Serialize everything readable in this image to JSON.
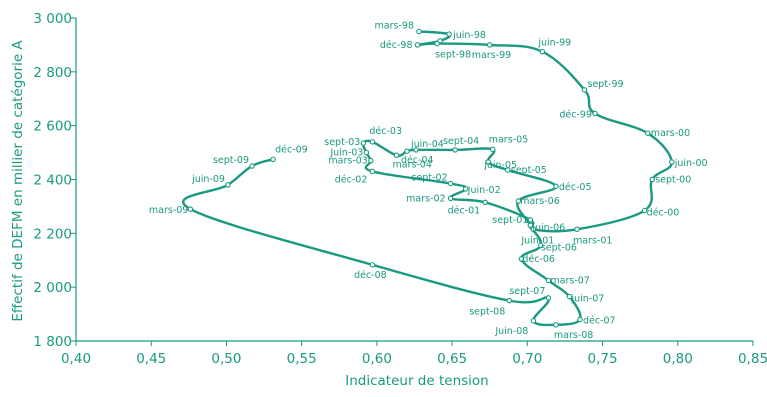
{
  "chart_data": {
    "type": "line",
    "title": "",
    "xlabel": "Indicateur de tension",
    "ylabel": "Effectif de DEFM en millier de catégorie A",
    "xlim": [
      0.4,
      0.85
    ],
    "ylim": [
      1800,
      3000
    ],
    "x_ticks": [
      0.4,
      0.45,
      0.5,
      0.55,
      0.6,
      0.65,
      0.7,
      0.75,
      0.8,
      0.85
    ],
    "x_tick_labels": [
      "0,40",
      "0,45",
      "0,50",
      "0,55",
      "0,60",
      "0,65",
      "0,70",
      "0,75",
      "0,80",
      "0,85"
    ],
    "y_ticks": [
      1800,
      2000,
      2200,
      2400,
      2600,
      2800,
      3000
    ],
    "y_tick_labels": [
      "1 800",
      "2 000",
      "2 200",
      "2 400",
      "2 600",
      "2 800",
      "3 000"
    ],
    "color": "#1a9a80",
    "grid": false,
    "legend": "none",
    "series": [
      {
        "points": [
          {
            "label": "mars-98",
            "x": 0.628,
            "y": 2950
          },
          {
            "label": "juin-98",
            "x": 0.648,
            "y": 2940
          },
          {
            "label": "",
            "x": 0.642,
            "y": 2915
          },
          {
            "label": "déc-98",
            "x": 0.627,
            "y": 2900
          },
          {
            "label": "sept-98",
            "x": 0.64,
            "y": 2905
          },
          {
            "label": "mars-99",
            "x": 0.675,
            "y": 2900
          },
          {
            "label": "juin-99",
            "x": 0.71,
            "y": 2875
          },
          {
            "label": "sept-99",
            "x": 0.738,
            "y": 2733
          },
          {
            "label": "déc-99",
            "x": 0.745,
            "y": 2645
          },
          {
            "label": "mars-00",
            "x": 0.78,
            "y": 2572
          },
          {
            "label": "juin-00",
            "x": 0.796,
            "y": 2465
          },
          {
            "label": "sept-00",
            "x": 0.783,
            "y": 2400
          },
          {
            "label": "déc-00",
            "x": 0.778,
            "y": 2285
          },
          {
            "label": "mars-01",
            "x": 0.733,
            "y": 2215
          },
          {
            "label": "Juin-01",
            "x": 0.704,
            "y": 2215
          },
          {
            "label": "sept-01",
            "x": 0.702,
            "y": 2250
          },
          {
            "label": "déc-01",
            "x": 0.672,
            "y": 2315
          },
          {
            "label": "mars-02",
            "x": 0.649,
            "y": 2330
          },
          {
            "label": "Juin-02",
            "x": 0.659,
            "y": 2365
          },
          {
            "label": "sept-02",
            "x": 0.649,
            "y": 2385
          },
          {
            "label": "déc-02",
            "x": 0.597,
            "y": 2430
          },
          {
            "label": "mars-03",
            "x": 0.596,
            "y": 2470
          },
          {
            "label": "Juin-03",
            "x": 0.593,
            "y": 2500
          },
          {
            "label": "sept-03",
            "x": 0.591,
            "y": 2535
          },
          {
            "label": "déc-03",
            "x": 0.597,
            "y": 2540
          },
          {
            "label": "mars-04",
            "x": 0.613,
            "y": 2490
          },
          {
            "label": "déc-04",
            "x": 0.62,
            "y": 2505
          },
          {
            "label": "juin-04",
            "x": 0.626,
            "y": 2510
          },
          {
            "label": "sept-04",
            "x": 0.652,
            "y": 2510
          },
          {
            "label": "mars-05",
            "x": 0.677,
            "y": 2512
          },
          {
            "label": "juin-05",
            "x": 0.674,
            "y": 2465
          },
          {
            "label": "sept-05",
            "x": 0.687,
            "y": 2435
          },
          {
            "label": "déc-05",
            "x": 0.719,
            "y": 2375
          },
          {
            "label": "mars-06",
            "x": 0.694,
            "y": 2320
          },
          {
            "label": "juin-06",
            "x": 0.702,
            "y": 2230
          },
          {
            "label": "sept-06",
            "x": 0.709,
            "y": 2155
          },
          {
            "label": "déc-06",
            "x": 0.696,
            "y": 2105
          },
          {
            "label": "mars-07",
            "x": 0.714,
            "y": 2025
          },
          {
            "label": "juin-07",
            "x": 0.728,
            "y": 1965
          },
          {
            "label": "déc-07",
            "x": 0.735,
            "y": 1880
          },
          {
            "label": "mars-08",
            "x": 0.719,
            "y": 1860
          },
          {
            "label": "Juin-08",
            "x": 0.704,
            "y": 1875
          },
          {
            "label": "sept-07",
            "x": 0.714,
            "y": 1960
          },
          {
            "label": "sept-08",
            "x": 0.688,
            "y": 1950
          },
          {
            "label": "déc-08",
            "x": 0.597,
            "y": 2083
          },
          {
            "label": "mars-09",
            "x": 0.476,
            "y": 2290
          },
          {
            "label": "juin-09",
            "x": 0.501,
            "y": 2380
          },
          {
            "label": "sept-09",
            "x": 0.517,
            "y": 2450
          },
          {
            "label": "déc-09",
            "x": 0.531,
            "y": 2475
          }
        ]
      }
    ]
  }
}
